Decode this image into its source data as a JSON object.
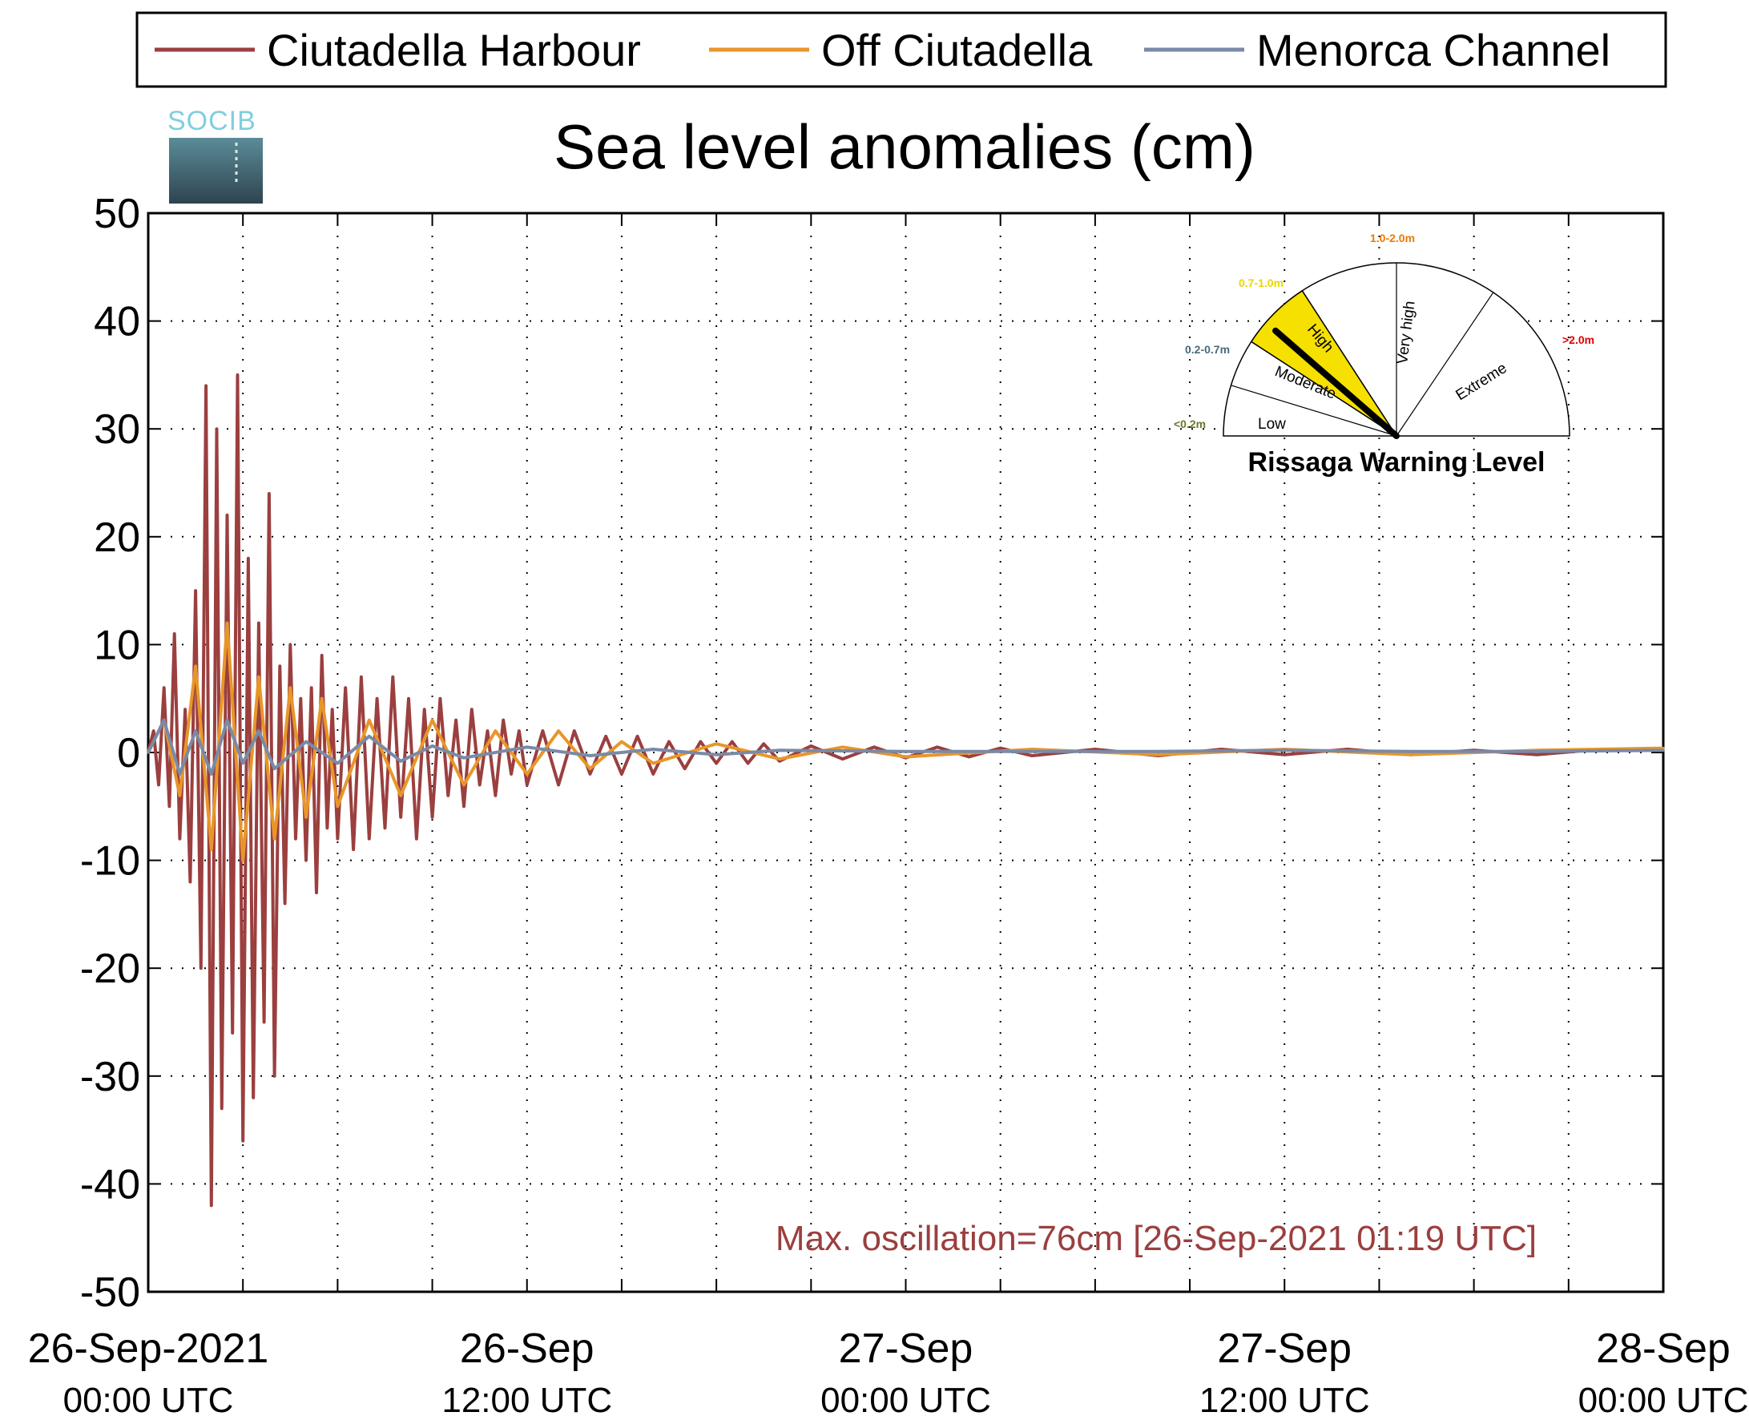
{
  "legend": {
    "items": [
      {
        "label": "Ciutadella Harbour",
        "color": "#9b3f3f"
      },
      {
        "label": "Off Ciutadella",
        "color": "#e8962a"
      },
      {
        "label": "Menorca Channel",
        "color": "#7a8aa6"
      }
    ]
  },
  "logo": {
    "text": "SOCIB"
  },
  "chart_data": {
    "type": "line",
    "title": "Sea level anomalies (cm)",
    "xlabel": "",
    "ylabel": "",
    "ylim": [
      -50,
      50
    ],
    "yticks": [
      50,
      40,
      30,
      20,
      10,
      0,
      -10,
      -20,
      -30,
      -40,
      -50
    ],
    "y_tick_labels": [
      "50",
      "40",
      "30",
      "20",
      "10",
      "0",
      "-10",
      "-20",
      "-30",
      "-40",
      "-50"
    ],
    "x_unit": "hours since 26-Sep-2021 00:00 UTC",
    "xlim": [
      0,
      48
    ],
    "xticks": [
      {
        "hours": 0,
        "date": "26-Sep-2021",
        "time": "00:00 UTC"
      },
      {
        "hours": 12,
        "date": "26-Sep",
        "time": "12:00 UTC"
      },
      {
        "hours": 24,
        "date": "27-Sep",
        "time": "00:00 UTC"
      },
      {
        "hours": 36,
        "date": "27-Sep",
        "time": "12:00 UTC"
      },
      {
        "hours": 48,
        "date": "28-Sep",
        "time": "00:00 UTC"
      }
    ],
    "minor_grid_hours": [
      3,
      6,
      9,
      15,
      18,
      21,
      27,
      30,
      33,
      39,
      42,
      45
    ],
    "grid": true,
    "legend_position": "top",
    "series": [
      {
        "name": "Ciutadella Harbour",
        "color": "#9b3f3f",
        "x": [
          0.0,
          0.17,
          0.33,
          0.5,
          0.67,
          0.83,
          1.0,
          1.17,
          1.33,
          1.5,
          1.67,
          1.83,
          2.0,
          2.17,
          2.33,
          2.5,
          2.67,
          2.83,
          3.0,
          3.17,
          3.33,
          3.5,
          3.67,
          3.83,
          4.0,
          4.17,
          4.33,
          4.5,
          4.67,
          4.83,
          5.0,
          5.17,
          5.33,
          5.5,
          5.67,
          5.83,
          6.0,
          6.25,
          6.5,
          6.75,
          7.0,
          7.25,
          7.5,
          7.75,
          8.0,
          8.25,
          8.5,
          8.75,
          9.0,
          9.25,
          9.5,
          9.75,
          10.0,
          10.25,
          10.5,
          10.75,
          11.0,
          11.25,
          11.5,
          11.75,
          12.0,
          12.5,
          13.0,
          13.5,
          14.0,
          14.5,
          15.0,
          15.5,
          16.0,
          16.5,
          17.0,
          17.5,
          18.0,
          18.5,
          19.0,
          19.5,
          20.0,
          21.0,
          22.0,
          23.0,
          24.0,
          25.0,
          26.0,
          27.0,
          28.0,
          30.0,
          32.0,
          34.0,
          36.0,
          38.0,
          40.0,
          42.0,
          44.0,
          46.0,
          48.0
        ],
        "values": [
          0,
          2,
          -3,
          6,
          -5,
          11,
          -8,
          4,
          -12,
          15,
          -20,
          34,
          -42,
          30,
          -33,
          22,
          -26,
          35,
          -36,
          18,
          -32,
          12,
          -25,
          24,
          -30,
          8,
          -14,
          10,
          -8,
          5,
          -10,
          6,
          -13,
          9,
          -7,
          4,
          -8,
          6,
          -9,
          7,
          -8,
          5,
          -7,
          7,
          -6,
          5,
          -8,
          4,
          -6,
          5,
          -4,
          3,
          -5,
          4,
          -3,
          2,
          -4,
          3,
          -2,
          2,
          -3,
          2,
          -3,
          2,
          -2,
          1.5,
          -2,
          1.5,
          -2,
          1,
          -1.5,
          1,
          -1,
          1,
          -1,
          0.8,
          -0.8,
          0.6,
          -0.6,
          0.5,
          -0.5,
          0.5,
          -0.4,
          0.4,
          -0.3,
          0.3,
          -0.3,
          0.3,
          -0.2,
          0.3,
          -0.2,
          0.2,
          -0.2,
          0.3,
          0.2
        ]
      },
      {
        "name": "Off Ciutadella",
        "color": "#e8962a",
        "x": [
          0.0,
          0.5,
          1.0,
          1.5,
          2.0,
          2.5,
          3.0,
          3.5,
          4.0,
          4.5,
          5.0,
          5.5,
          6.0,
          7.0,
          8.0,
          9.0,
          10.0,
          11.0,
          12.0,
          13.0,
          14.0,
          15.0,
          16.0,
          18.0,
          20.0,
          22.0,
          24.0,
          28.0,
          32.0,
          36.0,
          40.0,
          44.0,
          48.0
        ],
        "values": [
          0,
          3,
          -4,
          8,
          -9,
          12,
          -10,
          7,
          -8,
          6,
          -6,
          5,
          -5,
          3,
          -4,
          3,
          -3,
          2,
          -2,
          2,
          -1.5,
          1,
          -1,
          0.8,
          -0.6,
          0.5,
          -0.4,
          0.3,
          -0.2,
          0.3,
          -0.2,
          0.2,
          0.4
        ]
      },
      {
        "name": "Menorca Channel",
        "color": "#7a8aa6",
        "x": [
          0.0,
          0.5,
          1.0,
          1.5,
          2.0,
          2.5,
          3.0,
          3.5,
          4.0,
          5.0,
          6.0,
          7.0,
          8.0,
          9.0,
          10.0,
          12.0,
          14.0,
          16.0,
          18.0,
          20.0,
          24.0,
          28.0,
          32.0,
          36.0,
          40.0,
          44.0,
          48.0
        ],
        "values": [
          0,
          3,
          -2,
          2,
          -2,
          3,
          -1,
          2,
          -1.5,
          1,
          -1,
          1.5,
          -0.8,
          0.6,
          -0.5,
          0.5,
          -0.3,
          0.3,
          -0.2,
          0.2,
          0.1,
          0.1,
          0.1,
          0.2,
          0.1,
          0.1,
          0.2
        ]
      }
    ],
    "annotations": [
      {
        "text": "Max. oscillation=76cm [26-Sep-2021 01:19 UTC]",
        "color": "#9b3f3f"
      }
    ]
  },
  "gauge": {
    "title": "Rissaga Warning Level",
    "active_level": "High",
    "ranges": [
      {
        "label": "<0.2m",
        "color": "#6a7a2a"
      },
      {
        "label": "0.2-0.7m",
        "color": "#4a6a7a"
      },
      {
        "label": "0.7-1.0m",
        "color": "#e8d800"
      },
      {
        "label": "1.0-2.0m",
        "color": "#f07800"
      },
      {
        "label": ">2.0m",
        "color": "#e00000"
      }
    ],
    "sectors": [
      {
        "label": "Low"
      },
      {
        "label": "Moderate"
      },
      {
        "label": "High"
      },
      {
        "label": "Very high"
      },
      {
        "label": "Extreme"
      }
    ],
    "highlight_color": "#f5e000"
  }
}
